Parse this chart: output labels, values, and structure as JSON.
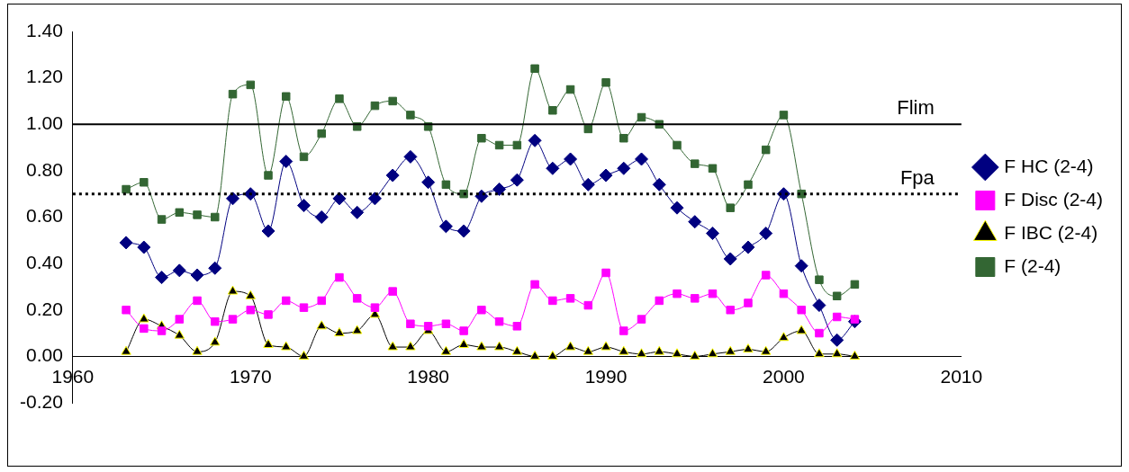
{
  "chart_data": {
    "type": "line",
    "x": [
      1963,
      1964,
      1965,
      1966,
      1967,
      1968,
      1969,
      1970,
      1971,
      1972,
      1973,
      1974,
      1975,
      1976,
      1977,
      1978,
      1979,
      1980,
      1981,
      1982,
      1983,
      1984,
      1985,
      1986,
      1987,
      1988,
      1989,
      1990,
      1991,
      1992,
      1993,
      1994,
      1995,
      1996,
      1997,
      1998,
      1999,
      2000,
      2001,
      2002,
      2003,
      2004
    ],
    "series": [
      {
        "name": "F HC (2-4)",
        "color": "#000080",
        "marker": "diamond",
        "values": [
          0.49,
          0.47,
          0.34,
          0.37,
          0.35,
          0.38,
          0.68,
          0.7,
          0.54,
          0.84,
          0.65,
          0.6,
          0.68,
          0.62,
          0.68,
          0.78,
          0.86,
          0.75,
          0.56,
          0.54,
          0.69,
          0.72,
          0.76,
          0.93,
          0.81,
          0.85,
          0.74,
          0.78,
          0.81,
          0.85,
          0.74,
          0.64,
          0.58,
          0.53,
          0.42,
          0.47,
          0.53,
          0.7,
          0.39,
          0.22,
          0.07,
          0.15
        ]
      },
      {
        "name": "F Disc (2-4)",
        "color": "#ff00ff",
        "marker": "square",
        "values": [
          0.2,
          0.12,
          0.11,
          0.16,
          0.24,
          0.15,
          0.16,
          0.2,
          0.18,
          0.24,
          0.21,
          0.24,
          0.34,
          0.25,
          0.21,
          0.28,
          0.14,
          0.13,
          0.14,
          0.11,
          0.2,
          0.15,
          0.13,
          0.31,
          0.24,
          0.25,
          0.22,
          0.36,
          0.11,
          0.16,
          0.24,
          0.27,
          0.25,
          0.27,
          0.2,
          0.23,
          0.35,
          0.27,
          0.2,
          0.1,
          0.17,
          0.16
        ]
      },
      {
        "name": "F IBC (2-4)",
        "color": "#000000",
        "marker": "triangle",
        "values": [
          0.02,
          0.16,
          0.13,
          0.09,
          0.02,
          0.06,
          0.28,
          0.26,
          0.05,
          0.04,
          0.0,
          0.13,
          0.1,
          0.11,
          0.18,
          0.04,
          0.04,
          0.11,
          0.02,
          0.05,
          0.04,
          0.04,
          0.02,
          0.0,
          0.0,
          0.04,
          0.02,
          0.04,
          0.02,
          0.01,
          0.02,
          0.01,
          0.0,
          0.01,
          0.02,
          0.03,
          0.02,
          0.08,
          0.11,
          0.01,
          0.01,
          0.0
        ]
      },
      {
        "name": "F (2-4)",
        "color": "#336633",
        "marker": "square",
        "values": [
          0.72,
          0.75,
          0.59,
          0.62,
          0.61,
          0.6,
          1.13,
          1.17,
          0.78,
          1.12,
          0.86,
          0.96,
          1.11,
          0.99,
          1.08,
          1.1,
          1.04,
          0.99,
          0.74,
          0.7,
          0.94,
          0.91,
          0.91,
          1.24,
          1.06,
          1.15,
          0.98,
          1.18,
          0.94,
          1.03,
          1.0,
          0.91,
          0.83,
          0.81,
          0.64,
          0.74,
          0.89,
          1.04,
          0.7,
          0.33,
          0.26,
          0.31
        ]
      }
    ],
    "xlim": [
      1960,
      2010
    ],
    "xticks": [
      1960,
      1970,
      1980,
      1990,
      2000,
      2010
    ],
    "ylim": [
      -0.2,
      1.4
    ],
    "yticks": [
      {
        "value": -0.2,
        "label": "-0.20"
      },
      {
        "value": 0,
        "label": "0.00"
      },
      {
        "value": 0.2,
        "label": "0.20"
      },
      {
        "value": 0.4,
        "label": "0.40"
      },
      {
        "value": 0.6,
        "label": "0.60"
      },
      {
        "value": 0.8,
        "label": "0.80"
      },
      {
        "value": 1,
        "label": "1.00"
      },
      {
        "value": 1.2,
        "label": "1.20"
      },
      {
        "value": 1.4,
        "label": "1.40"
      }
    ],
    "ref_lines": [
      {
        "axis": "y",
        "value": 1,
        "label": "Flim",
        "color": "#000000",
        "line_style": "solid"
      },
      {
        "axis": "y",
        "value": 0.7,
        "label": "Fpa",
        "color": "#000000",
        "line_style": "dotted"
      }
    ],
    "grid": false,
    "legend": "right",
    "line_style": "solid"
  }
}
